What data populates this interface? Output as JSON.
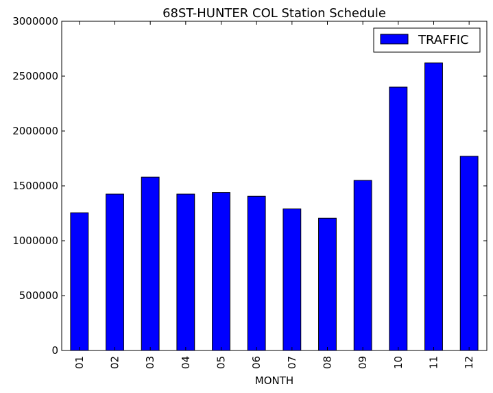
{
  "chart_data": {
    "type": "bar",
    "title": "68ST-HUNTER COL Station Schedule",
    "xlabel": "MONTH",
    "ylabel": "",
    "categories": [
      "01",
      "02",
      "03",
      "04",
      "05",
      "06",
      "07",
      "08",
      "09",
      "10",
      "11",
      "12"
    ],
    "series": [
      {
        "name": "TRAFFIC",
        "color": "#0000ff",
        "values": [
          1255000,
          1425000,
          1580000,
          1425000,
          1440000,
          1405000,
          1290000,
          1205000,
          1550000,
          2400000,
          2620000,
          1770000
        ]
      }
    ],
    "ylim": [
      0,
      3000000
    ],
    "yticks": [
      "0",
      "500000",
      "1000000",
      "1500000",
      "2000000",
      "2500000",
      "3000000"
    ],
    "ytick_values": [
      0,
      500000,
      1000000,
      1500000,
      2000000,
      2500000,
      3000000
    ],
    "grid": false,
    "legend_position": "top-right"
  }
}
